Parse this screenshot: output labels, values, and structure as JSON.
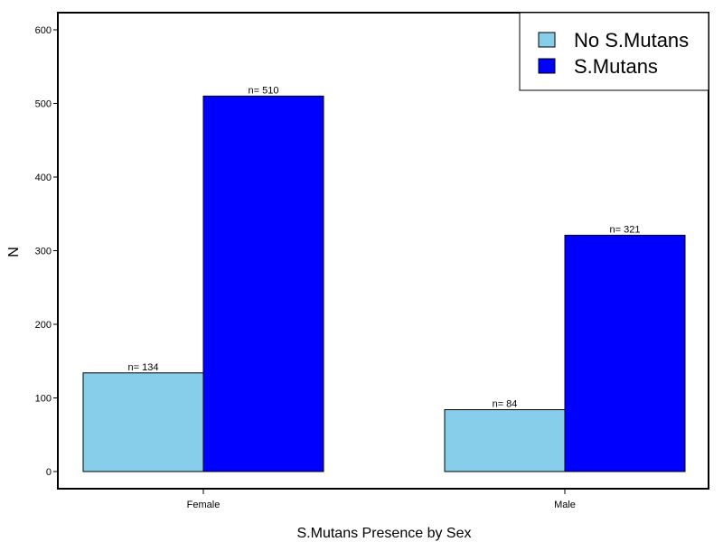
{
  "chart_data": {
    "type": "bar",
    "categories": [
      "Female",
      "Male"
    ],
    "series": [
      {
        "name": "No S.Mutans",
        "color": "#87ceeb",
        "values": [
          134,
          84
        ],
        "labels": [
          "n= 134",
          "n= 84"
        ]
      },
      {
        "name": "S.Mutans",
        "color": "#0000ff",
        "values": [
          510,
          321
        ],
        "labels": [
          "n= 510",
          "n= 321"
        ]
      }
    ],
    "xlabel": "S.Mutans Presence by Sex",
    "ylabel": "N",
    "ylim": [
      0,
      600
    ],
    "yticks": [
      0,
      100,
      200,
      300,
      400,
      500,
      600
    ],
    "legend_position": "top-right",
    "grid": false
  }
}
